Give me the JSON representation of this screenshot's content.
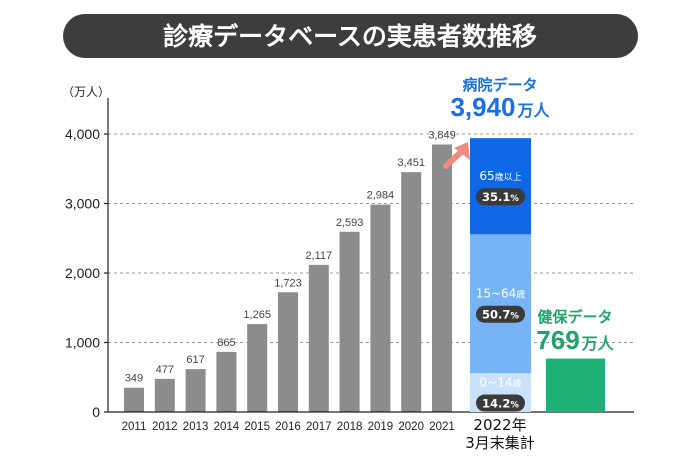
{
  "header": {
    "title": "診療データベースの実患者数推移"
  },
  "chart_data": {
    "type": "bar",
    "unit_label": "（万人）",
    "ylim": [
      0,
      4000
    ],
    "yticks": [
      0,
      1000,
      2000,
      3000,
      4000
    ],
    "ytick_labels": [
      "0",
      "1,000",
      "2,000",
      "3,000",
      "4,000"
    ],
    "grid": true,
    "categories": [
      "2011",
      "2012",
      "2013",
      "2014",
      "2015",
      "2016",
      "2017",
      "2018",
      "2019",
      "2020",
      "2021"
    ],
    "values": [
      349,
      477,
      617,
      865,
      1265,
      1723,
      2117,
      2593,
      2984,
      3451,
      3849
    ],
    "value_labels": [
      "349",
      "477",
      "617",
      "865",
      "1,265",
      "1,723",
      "2,117",
      "2,593",
      "2,984",
      "3,451",
      "3,849"
    ],
    "bar_color": "#8c8c8c",
    "hospital": {
      "title": "病院データ",
      "total_number": "3,940",
      "total_unit": "万人",
      "total_value": 3940,
      "segments": [
        {
          "label": "0~14",
          "suffix": "歳",
          "share_label": "14.2",
          "share": 14.2,
          "color": "#c9e1fb"
        },
        {
          "label": "15~64",
          "suffix": "歳",
          "share_label": "50.7",
          "share": 50.7,
          "color": "#77b4f5"
        },
        {
          "label": "65",
          "suffix": "歳以上",
          "share_label": "35.1",
          "share": 35.1,
          "color": "#0d67e6"
        }
      ],
      "percent_sign": "%"
    },
    "insurance": {
      "title": "健保データ",
      "total_number": "769",
      "total_unit": "万人",
      "value": 769,
      "color": "#1fb078"
    },
    "period_label_line1": "2022年",
    "period_label_line2": "3月末集計",
    "arrow_color": "#f08a7e"
  }
}
